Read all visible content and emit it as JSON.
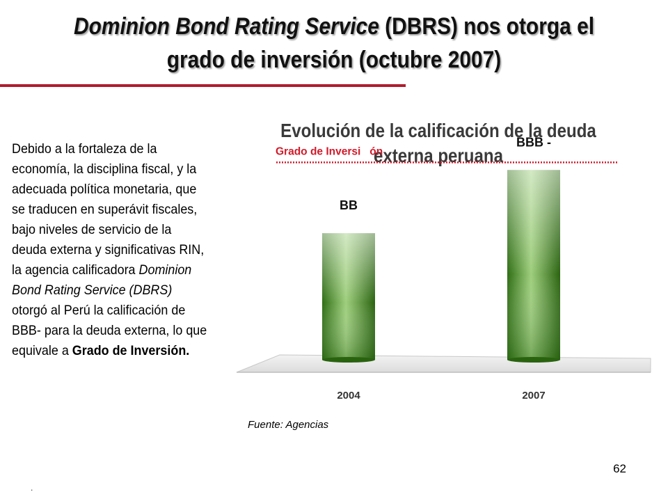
{
  "slide": {
    "title_italic": "Dominion Bond Rating Service",
    "title_rest": " (DBRS) nos otorga el grado de inversión (octubre 2007)",
    "body": {
      "p1": "Debido a la fortaleza de la economía, la disciplina fiscal, y la adecuada política monetaria, que se traducen en superávit fiscales, bajo niveles de servicio de la deuda externa y significativas RIN, la agencia calificadora ",
      "p1_italic": "Dominion Bond Rating Service (DBRS)",
      "p2": " otorgó al Perú la calificación de BBB- para la deuda externa, lo que equivale a ",
      "p2_bold": "Grado de Inversión."
    },
    "source": "Fuente: Agencias",
    "page_number": "62",
    "footer_mark": "."
  },
  "chart_data": {
    "type": "bar",
    "title": "Evolución de la calificación de la deuda externa peruana",
    "categories": [
      "2004",
      "2007"
    ],
    "series": [
      {
        "values": [
          "BB",
          "BBB-"
        ]
      }
    ],
    "data_labels": [
      "BB",
      "BBB  -"
    ],
    "rating_scale_levels": [
      2,
      3
    ],
    "reference_line": {
      "label": "Grado de Inversi   ón",
      "level": 3
    },
    "ylim": [
      0,
      3.4
    ],
    "grid": false,
    "legend": "none",
    "bar_color": "#3e8a1f",
    "reference_line_color": "#d11a2a"
  }
}
